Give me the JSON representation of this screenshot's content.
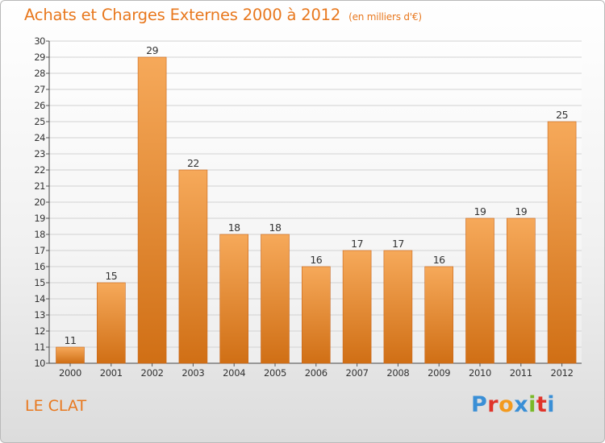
{
  "title": "Achats et Charges Externes 2000 à 2012",
  "unit_note": "(en milliers d'€)",
  "place": "LE CLAT",
  "brand": "Proxiti",
  "colors": {
    "accent": "#e8781e",
    "bar_light": "#f6a95a",
    "bar_dark": "#d06f15",
    "brand_letters": [
      "#3a8fd6",
      "#e0342a",
      "#f39a1e",
      "#3a8fd6",
      "#7ab928",
      "#e0342a",
      "#3a8fd6"
    ]
  },
  "chart_data": {
    "type": "bar",
    "categories": [
      "2000",
      "2001",
      "2002",
      "2003",
      "2004",
      "2005",
      "2006",
      "2007",
      "2008",
      "2009",
      "2010",
      "2011",
      "2012"
    ],
    "values": [
      11,
      15,
      29,
      22,
      18,
      18,
      16,
      17,
      17,
      16,
      19,
      19,
      25
    ],
    "title": "Achats et Charges Externes 2000 à 2012",
    "ylim": [
      10,
      30
    ],
    "yticks": [
      10,
      11,
      12,
      13,
      14,
      15,
      16,
      17,
      18,
      19,
      20,
      21,
      22,
      23,
      24,
      25,
      26,
      27,
      28,
      29,
      30
    ],
    "grid": true,
    "data_labels": true
  }
}
